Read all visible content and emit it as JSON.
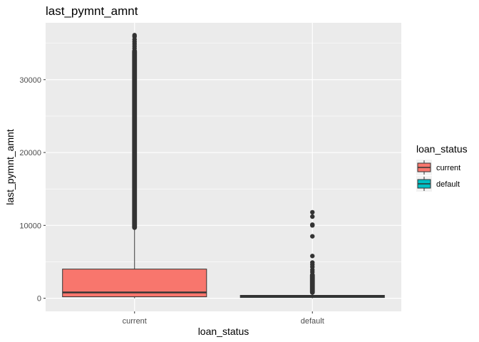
{
  "chart_data": {
    "type": "box",
    "title": "last_pymnt_amnt",
    "xlabel": "loan_status",
    "ylabel": "last_pymnt_amnt",
    "categories": [
      "current",
      "default"
    ],
    "ylim": [
      -1800,
      37800
    ],
    "yticks": [
      0,
      10000,
      20000,
      30000
    ],
    "ytick_labels": [
      "0",
      "10000",
      "20000",
      "30000"
    ],
    "grid": true,
    "legend": {
      "title": "loan_status",
      "placement": "right",
      "entries": [
        "current",
        "default"
      ]
    },
    "colors": {
      "current": "#F8766D",
      "default": "#00BFC4",
      "panel": "#EBEBEB",
      "grid": "#FFFFFF",
      "outline": "#333333"
    },
    "boxes": [
      {
        "name": "current",
        "lower_whisker": 0,
        "q1": 200,
        "median": 800,
        "q3": 4000,
        "upper_whisker": 9700,
        "outlier_range": [
          9700,
          33900
        ],
        "outliers": [
          34000,
          34300,
          34600,
          34900,
          35200,
          35500,
          35900,
          36100
        ]
      },
      {
        "name": "default",
        "lower_whisker": 0,
        "q1": 100,
        "median": 250,
        "q3": 400,
        "upper_whisker": 800,
        "outlier_range": [
          800,
          3200
        ],
        "outliers": [
          3600,
          3900,
          4300,
          4600,
          4900,
          5800,
          8500,
          10000,
          10100,
          11200,
          11800
        ]
      }
    ]
  }
}
